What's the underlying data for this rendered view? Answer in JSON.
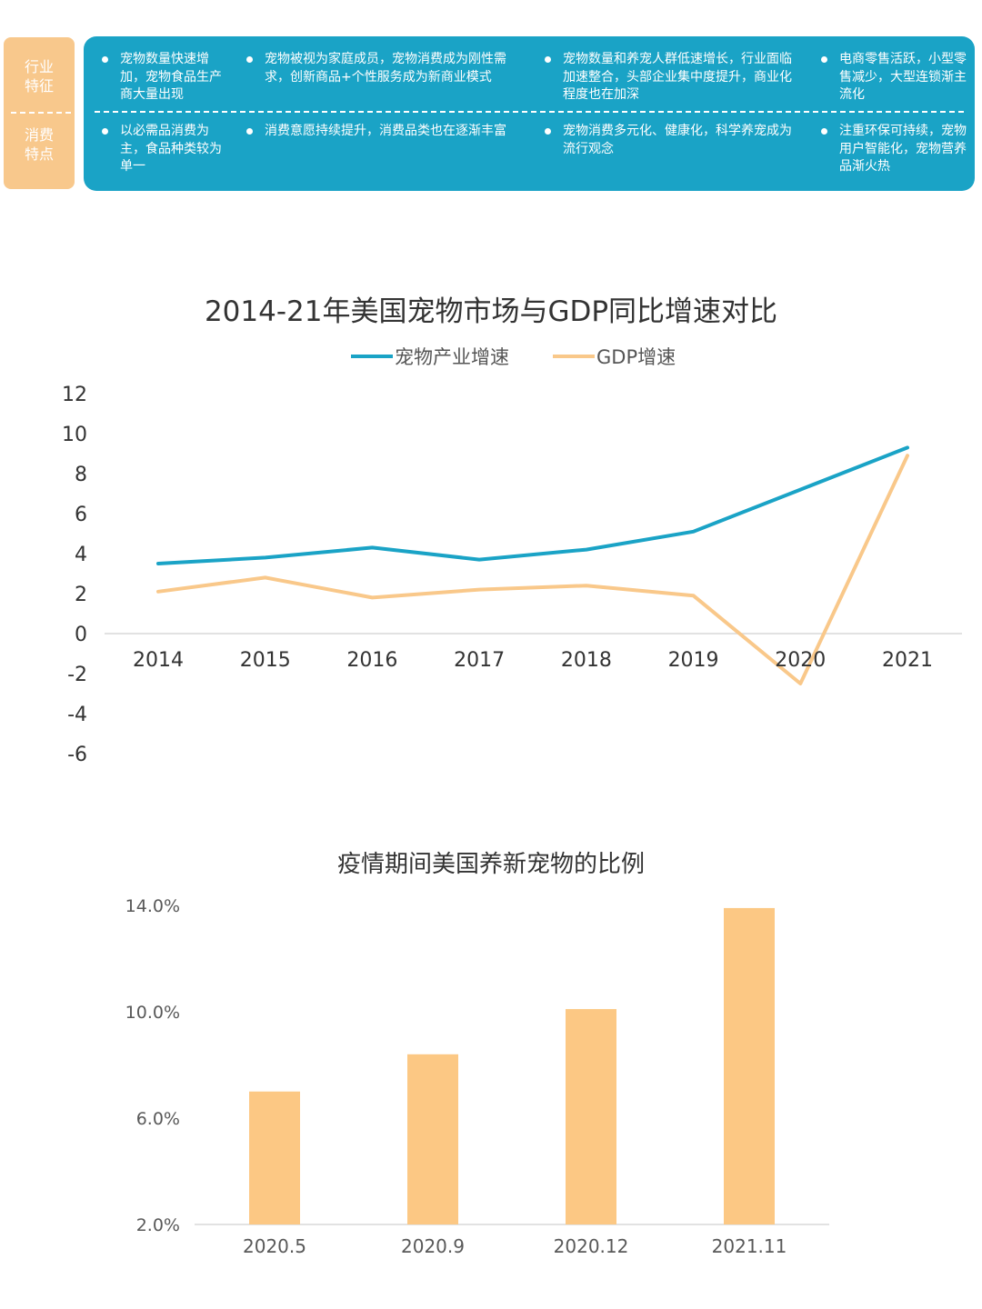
{
  "side_tab": {
    "top_label": "行业\n特征",
    "bottom_label": "消费\n特点"
  },
  "banner": {
    "industry_features": [
      "宠物数量快速增加，宠物食品生产商大量出现",
      "宠物被视为家庭成员，宠物消费成为刚性需求，创新商品+个性服务成为新商业模式",
      "宠物数量和养宠人群低速增长，行业面临加速整合，头部企业集中度提升，商业化程度也在加深",
      "电商零售活跃，小型零售减少，大型连锁渐主流化"
    ],
    "consumption_features": [
      "以必需品消费为主，食品种类较为单一",
      "消费意愿持续提升，消费品类也在逐渐丰富",
      "宠物消费多元化、健康化，科学养宠成为流行观念",
      "注重环保可持续，宠物用户智能化，宠物营养品渐火热"
    ]
  },
  "colors": {
    "banner_bg": "#1aa3c6",
    "side_tab_bg": "#f8c88c",
    "pet_line": "#1aa3c6",
    "gdp_line": "#f9c88a",
    "bar_fill": "#fcc884",
    "axis_line": "#d9d9d9"
  },
  "chart_data": [
    {
      "type": "line",
      "title": "2014-21年美国宠物市场与GDP同比增速对比",
      "x": [
        "2014",
        "2015",
        "2016",
        "2017",
        "2018",
        "2019",
        "2020",
        "2021"
      ],
      "series": [
        {
          "name": "宠物产业增速",
          "values": [
            3.5,
            3.8,
            4.3,
            3.7,
            4.2,
            5.1,
            7.2,
            9.3
          ]
        },
        {
          "name": "GDP增速",
          "values": [
            2.1,
            2.8,
            1.8,
            2.2,
            2.4,
            1.9,
            -2.5,
            8.9
          ]
        }
      ],
      "ylim": [
        -6,
        12
      ],
      "yticks": [
        "12",
        "10",
        "8",
        "6",
        "4",
        "2",
        "0",
        "-2",
        "-4",
        "-6"
      ],
      "legend": "top-center",
      "grid": false
    },
    {
      "type": "bar",
      "title": "疫情期间美国养新宠物的比例",
      "categories": [
        "2020.5",
        "2020.9",
        "2020.12",
        "2021.11"
      ],
      "values": [
        7.0,
        8.4,
        10.1,
        13.9
      ],
      "ylim": [
        2,
        14
      ],
      "yticks": [
        "14.0%",
        "10.0%",
        "6.0%",
        "2.0%"
      ],
      "grid": false
    }
  ]
}
